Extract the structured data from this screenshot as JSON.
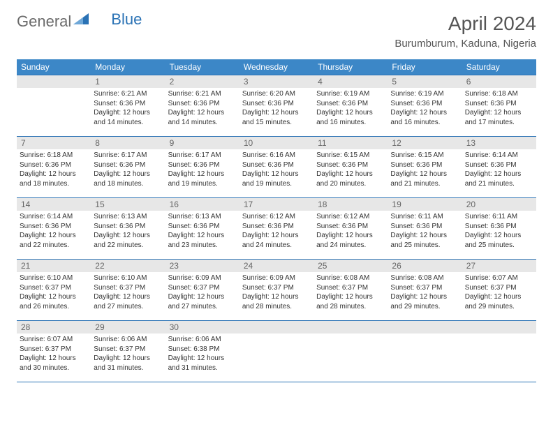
{
  "logo": {
    "part1": "General",
    "part2": "Blue"
  },
  "title": "April 2024",
  "location": "Burumburum, Kaduna, Nigeria",
  "colors": {
    "header_bg": "#3c87c7",
    "border": "#2a72b5",
    "daynum_bg": "#e7e7e7",
    "text": "#333333",
    "title_text": "#555555"
  },
  "dayHeaders": [
    "Sunday",
    "Monday",
    "Tuesday",
    "Wednesday",
    "Thursday",
    "Friday",
    "Saturday"
  ],
  "weeks": [
    [
      {
        "num": "",
        "lines": []
      },
      {
        "num": "1",
        "lines": [
          "Sunrise: 6:21 AM",
          "Sunset: 6:36 PM",
          "Daylight: 12 hours",
          "and 14 minutes."
        ]
      },
      {
        "num": "2",
        "lines": [
          "Sunrise: 6:21 AM",
          "Sunset: 6:36 PM",
          "Daylight: 12 hours",
          "and 14 minutes."
        ]
      },
      {
        "num": "3",
        "lines": [
          "Sunrise: 6:20 AM",
          "Sunset: 6:36 PM",
          "Daylight: 12 hours",
          "and 15 minutes."
        ]
      },
      {
        "num": "4",
        "lines": [
          "Sunrise: 6:19 AM",
          "Sunset: 6:36 PM",
          "Daylight: 12 hours",
          "and 16 minutes."
        ]
      },
      {
        "num": "5",
        "lines": [
          "Sunrise: 6:19 AM",
          "Sunset: 6:36 PM",
          "Daylight: 12 hours",
          "and 16 minutes."
        ]
      },
      {
        "num": "6",
        "lines": [
          "Sunrise: 6:18 AM",
          "Sunset: 6:36 PM",
          "Daylight: 12 hours",
          "and 17 minutes."
        ]
      }
    ],
    [
      {
        "num": "7",
        "lines": [
          "Sunrise: 6:18 AM",
          "Sunset: 6:36 PM",
          "Daylight: 12 hours",
          "and 18 minutes."
        ]
      },
      {
        "num": "8",
        "lines": [
          "Sunrise: 6:17 AM",
          "Sunset: 6:36 PM",
          "Daylight: 12 hours",
          "and 18 minutes."
        ]
      },
      {
        "num": "9",
        "lines": [
          "Sunrise: 6:17 AM",
          "Sunset: 6:36 PM",
          "Daylight: 12 hours",
          "and 19 minutes."
        ]
      },
      {
        "num": "10",
        "lines": [
          "Sunrise: 6:16 AM",
          "Sunset: 6:36 PM",
          "Daylight: 12 hours",
          "and 19 minutes."
        ]
      },
      {
        "num": "11",
        "lines": [
          "Sunrise: 6:15 AM",
          "Sunset: 6:36 PM",
          "Daylight: 12 hours",
          "and 20 minutes."
        ]
      },
      {
        "num": "12",
        "lines": [
          "Sunrise: 6:15 AM",
          "Sunset: 6:36 PM",
          "Daylight: 12 hours",
          "and 21 minutes."
        ]
      },
      {
        "num": "13",
        "lines": [
          "Sunrise: 6:14 AM",
          "Sunset: 6:36 PM",
          "Daylight: 12 hours",
          "and 21 minutes."
        ]
      }
    ],
    [
      {
        "num": "14",
        "lines": [
          "Sunrise: 6:14 AM",
          "Sunset: 6:36 PM",
          "Daylight: 12 hours",
          "and 22 minutes."
        ]
      },
      {
        "num": "15",
        "lines": [
          "Sunrise: 6:13 AM",
          "Sunset: 6:36 PM",
          "Daylight: 12 hours",
          "and 22 minutes."
        ]
      },
      {
        "num": "16",
        "lines": [
          "Sunrise: 6:13 AM",
          "Sunset: 6:36 PM",
          "Daylight: 12 hours",
          "and 23 minutes."
        ]
      },
      {
        "num": "17",
        "lines": [
          "Sunrise: 6:12 AM",
          "Sunset: 6:36 PM",
          "Daylight: 12 hours",
          "and 24 minutes."
        ]
      },
      {
        "num": "18",
        "lines": [
          "Sunrise: 6:12 AM",
          "Sunset: 6:36 PM",
          "Daylight: 12 hours",
          "and 24 minutes."
        ]
      },
      {
        "num": "19",
        "lines": [
          "Sunrise: 6:11 AM",
          "Sunset: 6:36 PM",
          "Daylight: 12 hours",
          "and 25 minutes."
        ]
      },
      {
        "num": "20",
        "lines": [
          "Sunrise: 6:11 AM",
          "Sunset: 6:36 PM",
          "Daylight: 12 hours",
          "and 25 minutes."
        ]
      }
    ],
    [
      {
        "num": "21",
        "lines": [
          "Sunrise: 6:10 AM",
          "Sunset: 6:37 PM",
          "Daylight: 12 hours",
          "and 26 minutes."
        ]
      },
      {
        "num": "22",
        "lines": [
          "Sunrise: 6:10 AM",
          "Sunset: 6:37 PM",
          "Daylight: 12 hours",
          "and 27 minutes."
        ]
      },
      {
        "num": "23",
        "lines": [
          "Sunrise: 6:09 AM",
          "Sunset: 6:37 PM",
          "Daylight: 12 hours",
          "and 27 minutes."
        ]
      },
      {
        "num": "24",
        "lines": [
          "Sunrise: 6:09 AM",
          "Sunset: 6:37 PM",
          "Daylight: 12 hours",
          "and 28 minutes."
        ]
      },
      {
        "num": "25",
        "lines": [
          "Sunrise: 6:08 AM",
          "Sunset: 6:37 PM",
          "Daylight: 12 hours",
          "and 28 minutes."
        ]
      },
      {
        "num": "26",
        "lines": [
          "Sunrise: 6:08 AM",
          "Sunset: 6:37 PM",
          "Daylight: 12 hours",
          "and 29 minutes."
        ]
      },
      {
        "num": "27",
        "lines": [
          "Sunrise: 6:07 AM",
          "Sunset: 6:37 PM",
          "Daylight: 12 hours",
          "and 29 minutes."
        ]
      }
    ],
    [
      {
        "num": "28",
        "lines": [
          "Sunrise: 6:07 AM",
          "Sunset: 6:37 PM",
          "Daylight: 12 hours",
          "and 30 minutes."
        ]
      },
      {
        "num": "29",
        "lines": [
          "Sunrise: 6:06 AM",
          "Sunset: 6:37 PM",
          "Daylight: 12 hours",
          "and 31 minutes."
        ]
      },
      {
        "num": "30",
        "lines": [
          "Sunrise: 6:06 AM",
          "Sunset: 6:38 PM",
          "Daylight: 12 hours",
          "and 31 minutes."
        ]
      },
      {
        "num": "",
        "lines": []
      },
      {
        "num": "",
        "lines": []
      },
      {
        "num": "",
        "lines": []
      },
      {
        "num": "",
        "lines": []
      }
    ]
  ]
}
